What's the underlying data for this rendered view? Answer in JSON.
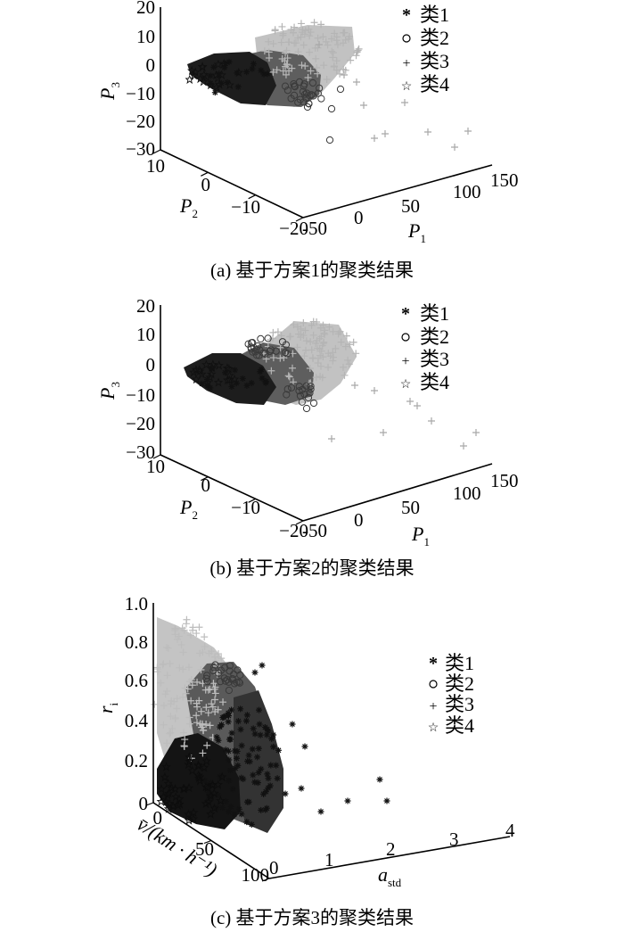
{
  "chart_data": [
    {
      "type": "scatter",
      "caption": "(a) 基于方案1的聚类结果",
      "xlabel": "P",
      "xlabel_sub": "1",
      "ylabel": "P",
      "ylabel_sub": "2",
      "zlabel": "P",
      "zlabel_sub": "3",
      "xlim": [
        -50,
        150
      ],
      "ylim": [
        -20,
        10
      ],
      "zlim": [
        -30,
        20
      ],
      "x_ticks": [
        "-50",
        "0",
        "50",
        "100",
        "150"
      ],
      "y_ticks": [
        "10",
        "0",
        "−10",
        "−20"
      ],
      "z_ticks": [
        "20",
        "10",
        "0",
        "−10",
        "−20",
        "−30"
      ],
      "legend_position": "top-right",
      "series": [
        {
          "name": "类1",
          "marker": "asterisk",
          "color": "#111111",
          "points": [
            [
              -10,
              2,
              1
            ],
            [
              0,
              0,
              -1
            ],
            [
              10,
              -2,
              -3
            ],
            [
              5,
              4,
              0
            ],
            [
              -5,
              -4,
              -3
            ]
          ]
        },
        {
          "name": "类2",
          "marker": "circle",
          "color": "#555555",
          "points": [
            [
              20,
              -3,
              -6
            ],
            [
              35,
              -8,
              -10
            ],
            [
              45,
              -12,
              -13
            ],
            [
              30,
              -5,
              -5
            ],
            [
              55,
              -15,
              -20
            ]
          ]
        },
        {
          "name": "类3",
          "marker": "plus",
          "color": "#bfbfbf",
          "points": [
            [
              30,
              6,
              12
            ],
            [
              60,
              -5,
              -2
            ],
            [
              80,
              -10,
              -8
            ],
            [
              110,
              -15,
              -20
            ],
            [
              140,
              -20,
              -22
            ],
            [
              120,
              -18,
              -25
            ]
          ]
        },
        {
          "name": "类4",
          "marker": "star",
          "color": "#333333",
          "points": [
            [
              -20,
              4,
              0
            ],
            [
              -15,
              -6,
              -6
            ],
            [
              10,
              -10,
              -12
            ],
            [
              20,
              -12,
              -12
            ]
          ]
        }
      ]
    },
    {
      "type": "scatter",
      "caption": "(b) 基于方案2的聚类结果",
      "xlabel": "P",
      "xlabel_sub": "1",
      "ylabel": "P",
      "ylabel_sub": "2",
      "zlabel": "P",
      "zlabel_sub": "3",
      "xlim": [
        -50,
        150
      ],
      "ylim": [
        -20,
        10
      ],
      "zlim": [
        -30,
        20
      ],
      "x_ticks": [
        "-50",
        "0",
        "50",
        "100",
        "150"
      ],
      "y_ticks": [
        "10",
        "0",
        "−10",
        "−20"
      ],
      "z_ticks": [
        "20",
        "10",
        "0",
        "−10",
        "−20",
        "−30"
      ],
      "legend_position": "top-right",
      "series": [
        {
          "name": "类1",
          "marker": "asterisk",
          "color": "#111111",
          "points": [
            [
              -10,
              2,
              1
            ],
            [
              0,
              0,
              -1
            ],
            [
              10,
              -2,
              -3
            ],
            [
              -5,
              -4,
              -3
            ]
          ]
        },
        {
          "name": "类2",
          "marker": "circle",
          "color": "#555555",
          "points": [
            [
              15,
              6,
              8
            ],
            [
              30,
              -5,
              -6
            ],
            [
              45,
              -12,
              -13
            ],
            [
              55,
              -15,
              -18
            ]
          ]
        },
        {
          "name": "类3",
          "marker": "plus",
          "color": "#bfbfbf",
          "points": [
            [
              30,
              6,
              12
            ],
            [
              60,
              -5,
              -2
            ],
            [
              90,
              -12,
              -12
            ],
            [
              120,
              -18,
              -22
            ],
            [
              140,
              -20,
              -22
            ]
          ]
        },
        {
          "name": "类4",
          "marker": "star",
          "color": "#333333",
          "points": [
            [
              -20,
              4,
              0
            ],
            [
              -15,
              -6,
              -6
            ],
            [
              10,
              -10,
              -12
            ],
            [
              20,
              -12,
              -14
            ]
          ]
        }
      ]
    },
    {
      "type": "scatter",
      "caption": "(c) 基于方案3的聚类结果",
      "xlabel": "a",
      "xlabel_sub": "std",
      "ylabel": "v̄/(km · h⁻¹)",
      "zlabel": "r",
      "zlabel_sub": "i",
      "xlim": [
        0,
        4
      ],
      "ylim": [
        0,
        100
      ],
      "zlim": [
        0,
        1
      ],
      "x_ticks": [
        "0",
        "1",
        "2",
        "3",
        "4"
      ],
      "y_ticks": [
        "0",
        "50",
        "100"
      ],
      "z_ticks": [
        "1.0",
        "0.8",
        "0.6",
        "0.4",
        "0.2",
        "0"
      ],
      "legend_position": "right",
      "series": [
        {
          "name": "类1",
          "marker": "asterisk",
          "color": "#111111",
          "points": [
            [
              0.8,
              40,
              0.4
            ],
            [
              1.2,
              20,
              0.3
            ],
            [
              1.6,
              10,
              0.25
            ],
            [
              2.5,
              5,
              0.1
            ],
            [
              3.0,
              0,
              0.05
            ],
            [
              2.8,
              10,
              0.2
            ]
          ]
        },
        {
          "name": "类2",
          "marker": "circle",
          "color": "#555555",
          "points": [
            [
              0.6,
              60,
              0.7
            ],
            [
              0.9,
              40,
              0.6
            ],
            [
              1.2,
              30,
              0.55
            ]
          ]
        },
        {
          "name": "类3",
          "marker": "plus",
          "color": "#bfbfbf",
          "points": [
            [
              0.1,
              10,
              0.9
            ],
            [
              0.2,
              30,
              0.8
            ],
            [
              0.4,
              50,
              0.6
            ],
            [
              0.3,
              80,
              0.5
            ]
          ]
        },
        {
          "name": "类4",
          "marker": "star",
          "color": "#222222",
          "points": [
            [
              0.2,
              20,
              0.2
            ],
            [
              0.4,
              40,
              0.15
            ],
            [
              0.6,
              60,
              0.1
            ],
            [
              0.3,
              80,
              0.05
            ]
          ]
        }
      ]
    }
  ]
}
